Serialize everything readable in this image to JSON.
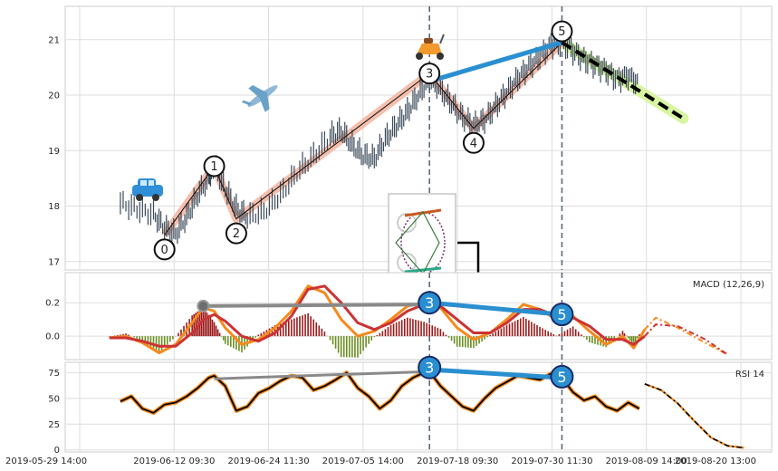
{
  "chart_data": {
    "type": "line",
    "x_ticks": [
      "2019-05-29 14:00",
      "2019-06-12 09:30",
      "2019-06-24 11:30",
      "2019-07-05 14:00",
      "2019-07-18 09:30",
      "2019-07-30 11:30",
      "2019-08-09 14:00",
      "2019-08-20 13:00"
    ],
    "panels": [
      {
        "name": "price",
        "ylim": [
          16.85,
          21.6
        ],
        "yticks": [
          17,
          18,
          19,
          20,
          21
        ],
        "price_series": [
          [
            2,
            18.05
          ],
          [
            5,
            17.95
          ],
          [
            8,
            17.85
          ],
          [
            10,
            17.6
          ],
          [
            12,
            17.5
          ],
          [
            14,
            17.8
          ],
          [
            16,
            18.2
          ],
          [
            18,
            18.5
          ],
          [
            19,
            18.72
          ],
          [
            21,
            18.3
          ],
          [
            23,
            17.95
          ],
          [
            25,
            17.8
          ],
          [
            28,
            17.9
          ],
          [
            31,
            18.2
          ],
          [
            34,
            18.6
          ],
          [
            37,
            18.9
          ],
          [
            40,
            19.25
          ],
          [
            42,
            19.35
          ],
          [
            44,
            19.1
          ],
          [
            46,
            18.9
          ],
          [
            48,
            18.85
          ],
          [
            50,
            19.2
          ],
          [
            52,
            19.45
          ],
          [
            54,
            19.7
          ],
          [
            56,
            20.0
          ],
          [
            58,
            20.3
          ],
          [
            60,
            20.1
          ],
          [
            62,
            19.85
          ],
          [
            64,
            19.6
          ],
          [
            66,
            19.45
          ],
          [
            68,
            19.55
          ],
          [
            70,
            19.8
          ],
          [
            72,
            20.05
          ],
          [
            74,
            20.3
          ],
          [
            76,
            20.5
          ],
          [
            78,
            20.7
          ],
          [
            80,
            20.9
          ],
          [
            82,
            20.95
          ],
          [
            84,
            20.8
          ],
          [
            86,
            20.65
          ],
          [
            88,
            20.55
          ],
          [
            90,
            20.45
          ],
          [
            92,
            20.3
          ],
          [
            94,
            20.35
          ],
          [
            96,
            20.2
          ]
        ],
        "wave_points": [
          {
            "label": "0",
            "x": 10,
            "y": 17.48
          },
          {
            "label": "1",
            "x": 19,
            "y": 18.72
          },
          {
            "label": "2",
            "x": 23,
            "y": 17.77
          },
          {
            "label": "3",
            "x": 58,
            "y": 20.39
          },
          {
            "label": "4",
            "x": 66,
            "y": 19.4
          },
          {
            "label": "5",
            "x": 82,
            "y": 21.15
          }
        ],
        "wave_segments": [
          [
            10,
            17.48
          ],
          [
            19,
            18.72
          ],
          [
            23,
            17.77
          ],
          [
            58,
            20.39
          ],
          [
            66,
            19.4
          ],
          [
            82,
            20.95
          ]
        ],
        "blue_line": [
          [
            58,
            20.25
          ],
          [
            82,
            20.95
          ]
        ],
        "projection": {
          "from": [
            82,
            20.95
          ],
          "to": [
            104,
            19.58
          ]
        },
        "green_band": [
          [
            82,
            20.95
          ],
          [
            104,
            19.58
          ]
        ],
        "dashed_verticals": [
          58,
          82
        ],
        "icons": [
          "car-icon",
          "airplane-icon",
          "scooter-icon"
        ]
      },
      {
        "name": "macd",
        "label": "MACD (12,26,9)",
        "ylim": [
          -0.14,
          0.38
        ],
        "yticks": [
          0.2,
          0.0
        ],
        "ytick_labels": [
          "0.2",
          "0.0"
        ],
        "macd": [
          [
            0,
            -0.01
          ],
          [
            3,
            0.0
          ],
          [
            6,
            -0.04
          ],
          [
            9,
            -0.1
          ],
          [
            12,
            -0.05
          ],
          [
            15,
            0.08
          ],
          [
            17,
            0.17
          ],
          [
            19,
            0.15
          ],
          [
            21,
            0.05
          ],
          [
            24,
            -0.05
          ],
          [
            27,
            -0.02
          ],
          [
            30,
            0.05
          ],
          [
            33,
            0.15
          ],
          [
            36,
            0.3
          ],
          [
            39,
            0.26
          ],
          [
            42,
            0.1
          ],
          [
            45,
            0.0
          ],
          [
            48,
            0.03
          ],
          [
            51,
            0.1
          ],
          [
            54,
            0.18
          ],
          [
            57,
            0.2
          ],
          [
            60,
            0.17
          ],
          [
            63,
            0.05
          ],
          [
            66,
            -0.02
          ],
          [
            69,
            0.02
          ],
          [
            72,
            0.1
          ],
          [
            75,
            0.19
          ],
          [
            78,
            0.16
          ],
          [
            81,
            0.1
          ],
          [
            84,
            0.12
          ],
          [
            87,
            0.03
          ],
          [
            90,
            -0.05
          ],
          [
            93,
            0.0
          ],
          [
            95,
            -0.07
          ],
          [
            97,
            0.04
          ],
          [
            99,
            0.11
          ],
          [
            103,
            0.05
          ],
          [
            108,
            -0.04
          ],
          [
            112,
            -0.11
          ]
        ],
        "signal": [
          [
            0,
            -0.01
          ],
          [
            3,
            -0.01
          ],
          [
            6,
            -0.03
          ],
          [
            9,
            -0.06
          ],
          [
            12,
            -0.06
          ],
          [
            15,
            0.02
          ],
          [
            17,
            0.1
          ],
          [
            19,
            0.13
          ],
          [
            21,
            0.09
          ],
          [
            24,
            0.0
          ],
          [
            27,
            -0.03
          ],
          [
            30,
            0.02
          ],
          [
            33,
            0.12
          ],
          [
            36,
            0.28
          ],
          [
            39,
            0.3
          ],
          [
            42,
            0.2
          ],
          [
            45,
            0.08
          ],
          [
            48,
            0.04
          ],
          [
            51,
            0.08
          ],
          [
            54,
            0.15
          ],
          [
            57,
            0.19
          ],
          [
            60,
            0.18
          ],
          [
            63,
            0.1
          ],
          [
            66,
            0.02
          ],
          [
            69,
            0.02
          ],
          [
            72,
            0.08
          ],
          [
            75,
            0.16
          ],
          [
            78,
            0.16
          ],
          [
            81,
            0.12
          ],
          [
            84,
            0.11
          ],
          [
            87,
            0.06
          ],
          [
            90,
            -0.02
          ],
          [
            93,
            -0.02
          ],
          [
            95,
            -0.05
          ],
          [
            97,
            0.0
          ],
          [
            99,
            0.07
          ],
          [
            103,
            0.06
          ],
          [
            108,
            -0.02
          ],
          [
            112,
            -0.11
          ]
        ],
        "grey_line": [
          [
            17,
            0.18
          ],
          [
            58,
            0.19
          ]
        ],
        "blue_line": [
          [
            58,
            0.2
          ],
          [
            82,
            0.13
          ]
        ],
        "divergence_labels": [
          {
            "label": "3",
            "x": 58,
            "y": 0.2
          },
          {
            "label": "5",
            "x": 82,
            "y": 0.13
          }
        ],
        "colors": {
          "macd": "#f58a1c",
          "signal": "#cc3333",
          "hist_up": "#9b1b1b",
          "hist_down": "#6b8e23"
        }
      },
      {
        "name": "rsi",
        "label": "RSI 14",
        "ylim": [
          -2,
          85
        ],
        "yticks": [
          0,
          25,
          50,
          75
        ],
        "ytick_labels": [
          "0",
          "25",
          "50",
          "75"
        ],
        "rsi": [
          [
            2,
            47
          ],
          [
            4,
            52
          ],
          [
            6,
            40
          ],
          [
            8,
            36
          ],
          [
            10,
            44
          ],
          [
            12,
            46
          ],
          [
            14,
            52
          ],
          [
            16,
            60
          ],
          [
            18,
            70
          ],
          [
            19,
            72
          ],
          [
            21,
            62
          ],
          [
            23,
            38
          ],
          [
            25,
            42
          ],
          [
            27,
            55
          ],
          [
            29,
            60
          ],
          [
            31,
            67
          ],
          [
            33,
            72
          ],
          [
            35,
            70
          ],
          [
            37,
            58
          ],
          [
            39,
            62
          ],
          [
            41,
            68
          ],
          [
            43,
            75
          ],
          [
            45,
            60
          ],
          [
            47,
            52
          ],
          [
            49,
            40
          ],
          [
            51,
            48
          ],
          [
            53,
            62
          ],
          [
            55,
            70
          ],
          [
            57,
            75
          ],
          [
            58,
            76
          ],
          [
            60,
            62
          ],
          [
            62,
            52
          ],
          [
            64,
            42
          ],
          [
            66,
            38
          ],
          [
            68,
            50
          ],
          [
            70,
            60
          ],
          [
            72,
            66
          ],
          [
            74,
            72
          ],
          [
            76,
            70
          ],
          [
            78,
            68
          ],
          [
            80,
            74
          ],
          [
            82,
            70
          ],
          [
            84,
            56
          ],
          [
            86,
            48
          ],
          [
            88,
            52
          ],
          [
            90,
            42
          ],
          [
            92,
            38
          ],
          [
            94,
            46
          ],
          [
            96,
            40
          ]
        ],
        "projection": [
          [
            97,
            64
          ],
          [
            100,
            58
          ],
          [
            103,
            45
          ],
          [
            106,
            28
          ],
          [
            109,
            12
          ],
          [
            112,
            4
          ],
          [
            115,
            2
          ]
        ],
        "grey_line": [
          [
            19,
            69
          ],
          [
            58,
            76
          ]
        ],
        "blue_line": [
          [
            58,
            78
          ],
          [
            82,
            70
          ]
        ],
        "divergence_labels": [
          {
            "label": "3",
            "x": 58,
            "y": 80
          },
          {
            "label": "5",
            "x": 82,
            "y": 71
          }
        ]
      }
    ],
    "x_range": [
      -8,
      120
    ],
    "grid": true
  }
}
